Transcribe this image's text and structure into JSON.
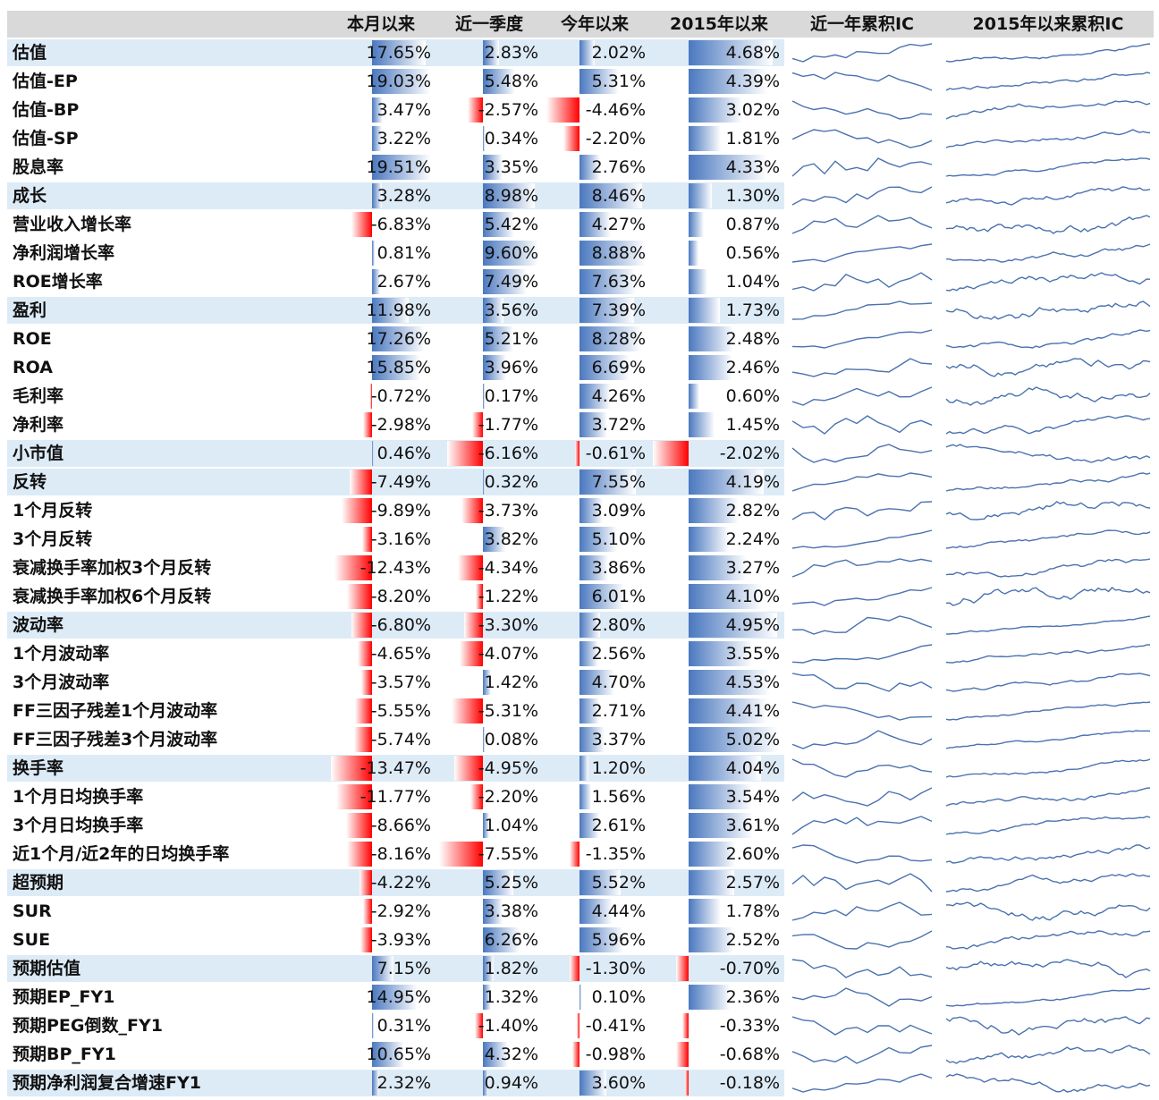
{
  "columns": [
    "本月以来",
    "近一季度",
    "今年以来",
    "2015年以来",
    "近一年累积IC",
    "2015年以来累积IC"
  ],
  "colors": {
    "header_bg": "#d9d9d9",
    "group_bg": "#ddebf7",
    "positive_bar": "#4a78bf",
    "negative_bar": "#ff0000",
    "sparkline": "#4a72b0"
  },
  "chart_data": {
    "type": "table",
    "rows": [
      {
        "name": "估值",
        "values": [
          "17.65%",
          "2.83%",
          "2.02%",
          "4.68%"
        ],
        "group": true
      },
      {
        "name": "估值-EP",
        "values": [
          "19.03%",
          "5.48%",
          "5.31%",
          "4.39%"
        ],
        "group": false
      },
      {
        "name": "估值-BP",
        "values": [
          "3.47%",
          "-2.57%",
          "-4.46%",
          "3.02%"
        ],
        "group": false
      },
      {
        "name": "估值-SP",
        "values": [
          "3.22%",
          "0.34%",
          "-2.20%",
          "1.81%"
        ],
        "group": false
      },
      {
        "name": "股息率",
        "values": [
          "19.51%",
          "3.35%",
          "2.76%",
          "4.33%"
        ],
        "group": false
      },
      {
        "name": "成长",
        "values": [
          "3.28%",
          "8.98%",
          "8.46%",
          "1.30%"
        ],
        "group": true
      },
      {
        "name": "营业收入增长率",
        "values": [
          "-6.83%",
          "5.42%",
          "4.27%",
          "0.87%"
        ],
        "group": false
      },
      {
        "name": "净利润增长率",
        "values": [
          "0.81%",
          "9.60%",
          "8.88%",
          "0.56%"
        ],
        "group": false
      },
      {
        "name": "ROE增长率",
        "values": [
          "2.67%",
          "7.49%",
          "7.63%",
          "1.04%"
        ],
        "group": false
      },
      {
        "name": "盈利",
        "values": [
          "11.98%",
          "3.56%",
          "7.39%",
          "1.73%"
        ],
        "group": true
      },
      {
        "name": "ROE",
        "values": [
          "17.26%",
          "5.21%",
          "8.28%",
          "2.48%"
        ],
        "group": false
      },
      {
        "name": "ROA",
        "values": [
          "15.85%",
          "3.96%",
          "6.69%",
          "2.46%"
        ],
        "group": false
      },
      {
        "name": "毛利率",
        "values": [
          "-0.72%",
          "0.17%",
          "4.26%",
          "0.60%"
        ],
        "group": false
      },
      {
        "name": "净利率",
        "values": [
          "-2.98%",
          "-1.77%",
          "3.72%",
          "1.45%"
        ],
        "group": false
      },
      {
        "name": "小市值",
        "values": [
          "0.46%",
          "-6.16%",
          "-0.61%",
          "-2.02%"
        ],
        "group": true
      },
      {
        "name": "反转",
        "values": [
          "-7.49%",
          "0.32%",
          "7.55%",
          "4.19%"
        ],
        "group": true
      },
      {
        "name": "1个月反转",
        "values": [
          "-9.89%",
          "-3.73%",
          "3.09%",
          "2.82%"
        ],
        "group": false
      },
      {
        "name": "3个月反转",
        "values": [
          "-3.16%",
          "3.82%",
          "5.10%",
          "2.24%"
        ],
        "group": false
      },
      {
        "name": "衰减换手率加权3个月反转",
        "values": [
          "-12.43%",
          "-4.34%",
          "3.86%",
          "3.27%"
        ],
        "group": false
      },
      {
        "name": "衰减换手率加权6个月反转",
        "values": [
          "-8.20%",
          "-1.22%",
          "6.01%",
          "4.10%"
        ],
        "group": false
      },
      {
        "name": "波动率",
        "values": [
          "-6.80%",
          "-3.30%",
          "2.80%",
          "4.95%"
        ],
        "group": true
      },
      {
        "name": "1个月波动率",
        "values": [
          "-4.65%",
          "-4.07%",
          "2.56%",
          "3.55%"
        ],
        "group": false
      },
      {
        "name": "3个月波动率",
        "values": [
          "-3.57%",
          "1.42%",
          "4.70%",
          "4.53%"
        ],
        "group": false
      },
      {
        "name": "FF三因子残差1个月波动率",
        "values": [
          "-5.55%",
          "-5.31%",
          "2.71%",
          "4.41%"
        ],
        "group": false
      },
      {
        "name": "FF三因子残差3个月波动率",
        "values": [
          "-5.74%",
          "0.08%",
          "3.37%",
          "5.02%"
        ],
        "group": false
      },
      {
        "name": "换手率",
        "values": [
          "-13.47%",
          "-4.95%",
          "1.20%",
          "4.04%"
        ],
        "group": true
      },
      {
        "name": "1个月日均换手率",
        "values": [
          "-11.77%",
          "-2.20%",
          "1.56%",
          "3.54%"
        ],
        "group": false
      },
      {
        "name": "3个月日均换手率",
        "values": [
          "-8.66%",
          "1.04%",
          "2.61%",
          "3.61%"
        ],
        "group": false
      },
      {
        "name": "近1个月/近2年的日均换手率",
        "values": [
          "-8.16%",
          "-7.55%",
          "-1.35%",
          "2.60%"
        ],
        "group": false
      },
      {
        "name": "超预期",
        "values": [
          "-4.22%",
          "5.25%",
          "5.52%",
          "2.57%"
        ],
        "group": true
      },
      {
        "name": "SUR",
        "values": [
          "-2.92%",
          "3.38%",
          "4.44%",
          "1.78%"
        ],
        "group": false
      },
      {
        "name": "SUE",
        "values": [
          "-3.93%",
          "6.26%",
          "5.96%",
          "2.52%"
        ],
        "group": false
      },
      {
        "name": "预期估值",
        "values": [
          "7.15%",
          "1.82%",
          "-1.30%",
          "-0.70%"
        ],
        "group": true
      },
      {
        "name": "预期EP_FY1",
        "values": [
          "14.95%",
          "1.32%",
          "0.10%",
          "2.36%"
        ],
        "group": false
      },
      {
        "name": "预期PEG倒数_FY1",
        "values": [
          "0.31%",
          "-1.40%",
          "-0.41%",
          "-0.33%"
        ],
        "group": false
      },
      {
        "name": "预期BP_FY1",
        "values": [
          "10.65%",
          "4.32%",
          "-0.98%",
          "-0.68%"
        ],
        "group": false
      },
      {
        "name": "预期净利润复合增速FY1",
        "values": [
          "2.32%",
          "0.94%",
          "3.60%",
          "-0.18%"
        ],
        "group": true
      }
    ]
  }
}
